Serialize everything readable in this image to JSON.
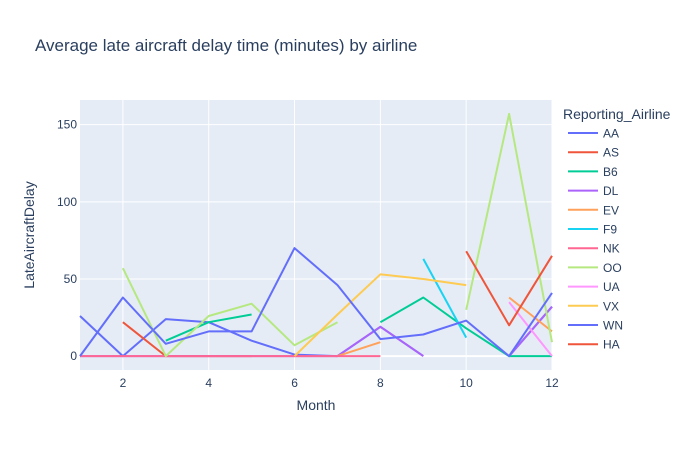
{
  "chart_data": {
    "type": "line",
    "title": "Average late aircraft delay time (minutes) by airline",
    "xlabel": "Month",
    "ylabel": "LateAircraftDelay",
    "xlim": [
      1,
      12
    ],
    "ylim": [
      -9,
      166
    ],
    "xticks": [
      2,
      4,
      6,
      8,
      10,
      12
    ],
    "yticks": [
      0,
      50,
      100,
      150
    ],
    "grid": true,
    "plot_bg": "#E5ECF6",
    "legend": {
      "title": "Reporting_Airline",
      "placement": "right"
    },
    "series": [
      {
        "name": "AA",
        "color": "#636EFA",
        "points": [
          [
            1,
            26
          ],
          [
            2,
            0
          ],
          [
            3,
            24
          ],
          [
            4,
            22
          ],
          [
            5,
            10
          ],
          [
            6,
            1
          ],
          [
            7,
            0
          ],
          [
            8,
            19
          ],
          [
            9,
            0
          ],
          [
            10,
            null
          ],
          [
            11,
            0
          ],
          [
            12,
            32
          ]
        ]
      },
      {
        "name": "AS",
        "color": "#EF553B",
        "points": [
          [
            2,
            22
          ],
          [
            3,
            0
          ],
          [
            4,
            0
          ],
          [
            5,
            0
          ]
        ]
      },
      {
        "name": "B6",
        "color": "#00CC96",
        "points": [
          [
            3,
            10
          ],
          [
            4,
            22
          ],
          [
            5,
            27
          ],
          [
            6,
            null
          ],
          [
            7,
            null
          ],
          [
            8,
            22
          ],
          [
            9,
            38
          ],
          [
            10,
            18
          ],
          [
            11,
            0
          ],
          [
            12,
            0
          ]
        ]
      },
      {
        "name": "DL",
        "color": "#AB63FA",
        "points": [
          [
            1,
            0
          ],
          [
            2,
            0
          ],
          [
            3,
            0
          ],
          [
            4,
            0
          ],
          [
            5,
            0
          ],
          [
            6,
            0
          ],
          [
            7,
            0
          ],
          [
            8,
            19
          ],
          [
            9,
            0
          ],
          [
            10,
            null
          ],
          [
            11,
            0
          ],
          [
            12,
            32
          ]
        ]
      },
      {
        "name": "EV",
        "color": "#FFA15A",
        "points": [
          [
            7,
            0
          ],
          [
            8,
            9
          ],
          [
            9,
            null
          ],
          [
            10,
            null
          ],
          [
            11,
            38
          ],
          [
            12,
            16
          ]
        ]
      },
      {
        "name": "F9",
        "color": "#19D3F3",
        "points": [
          [
            9,
            63
          ],
          [
            10,
            12
          ]
        ]
      },
      {
        "name": "NK",
        "color": "#FF6692",
        "points": [
          [
            1,
            0
          ],
          [
            2,
            0
          ],
          [
            3,
            0
          ],
          [
            4,
            0
          ],
          [
            5,
            0
          ],
          [
            6,
            0
          ],
          [
            7,
            0
          ],
          [
            8,
            0
          ]
        ]
      },
      {
        "name": "OO",
        "color": "#B6E880",
        "points": [
          [
            2,
            57
          ],
          [
            3,
            0
          ],
          [
            4,
            26
          ],
          [
            5,
            34
          ],
          [
            6,
            7
          ],
          [
            7,
            22
          ],
          [
            8,
            null
          ],
          [
            9,
            null
          ],
          [
            10,
            30
          ],
          [
            11,
            157
          ],
          [
            12,
            9
          ]
        ]
      },
      {
        "name": "UA",
        "color": "#FF97FF",
        "points": [
          [
            11,
            35
          ],
          [
            12,
            0
          ]
        ]
      },
      {
        "name": "VX",
        "color": "#FECB52",
        "points": [
          [
            6,
            0
          ],
          [
            7,
            27
          ],
          [
            8,
            53
          ],
          [
            9,
            50
          ],
          [
            10,
            46
          ]
        ]
      },
      {
        "name": "WN",
        "color": "#636EFA",
        "points": [
          [
            1,
            0
          ],
          [
            2,
            38
          ],
          [
            3,
            8
          ],
          [
            4,
            16
          ],
          [
            5,
            16
          ],
          [
            6,
            70
          ],
          [
            7,
            46
          ],
          [
            8,
            11
          ],
          [
            9,
            14
          ],
          [
            10,
            23
          ],
          [
            11,
            0
          ],
          [
            12,
            41
          ]
        ]
      },
      {
        "name": "HA",
        "color": "#EF553B",
        "points": [
          [
            10,
            68
          ],
          [
            11,
            20
          ],
          [
            12,
            65
          ]
        ]
      }
    ]
  }
}
